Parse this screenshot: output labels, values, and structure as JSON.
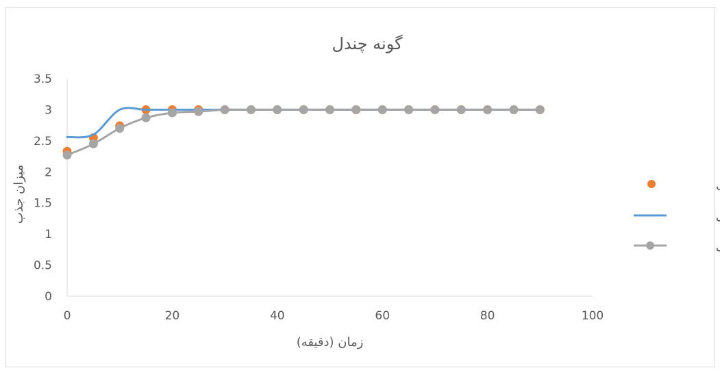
{
  "chart_data": {
    "type": "scatter",
    "title": "گونه چندل",
    "xlabel": "زمان (دقیقه)",
    "ylabel": "میزان جذب",
    "xlim": [
      0,
      100
    ],
    "ylim": [
      0,
      3.5
    ],
    "x_ticks": [
      "0",
      "20",
      "40",
      "60",
      "80",
      "100"
    ],
    "y_ticks": [
      "0",
      "0.5",
      "1",
      "1.5",
      "2",
      "2.5",
      "3",
      "3.5"
    ],
    "grid": false,
    "legend_position": "right",
    "series": [
      {
        "name": "ساقه چندل",
        "style": "markers",
        "color": "#ED7D31",
        "x": [
          0,
          5,
          10,
          15,
          20,
          25,
          30,
          35,
          40,
          45,
          50,
          55,
          60,
          65,
          70,
          75,
          80,
          85,
          90
        ],
        "values": [
          2.33,
          2.55,
          2.74,
          3.0,
          3.0,
          3.0,
          3.0,
          3.0,
          3.0,
          3.0,
          3.0,
          3.0,
          3.0,
          3.0,
          3.0,
          3.0,
          3.0,
          3.0,
          3.0
        ]
      },
      {
        "name": "برگ چندل",
        "style": "smooth-line",
        "color": "#5B9BD5",
        "x": [
          0,
          5,
          10,
          15,
          20,
          25,
          30,
          35,
          40,
          45,
          50,
          55,
          60,
          65,
          70,
          75,
          80,
          85,
          90
        ],
        "values": [
          2.56,
          2.6,
          3.0,
          3.0,
          3.0,
          3.0,
          3.0,
          3.0,
          3.0,
          3.0,
          3.0,
          3.0,
          3.0,
          3.0,
          3.0,
          3.0,
          3.0,
          3.0,
          3.0
        ]
      },
      {
        "name": "ریشه چندل",
        "style": "smooth-line-markers",
        "color": "#A5A5A5",
        "x": [
          0,
          5,
          10,
          15,
          20,
          25,
          30,
          35,
          40,
          45,
          50,
          55,
          60,
          65,
          70,
          75,
          80,
          85,
          90
        ],
        "values": [
          2.27,
          2.45,
          2.7,
          2.87,
          2.95,
          2.97,
          3.0,
          3.0,
          3.0,
          3.0,
          3.0,
          3.0,
          3.0,
          3.0,
          3.0,
          3.0,
          3.0,
          3.0,
          3.0
        ]
      }
    ]
  }
}
